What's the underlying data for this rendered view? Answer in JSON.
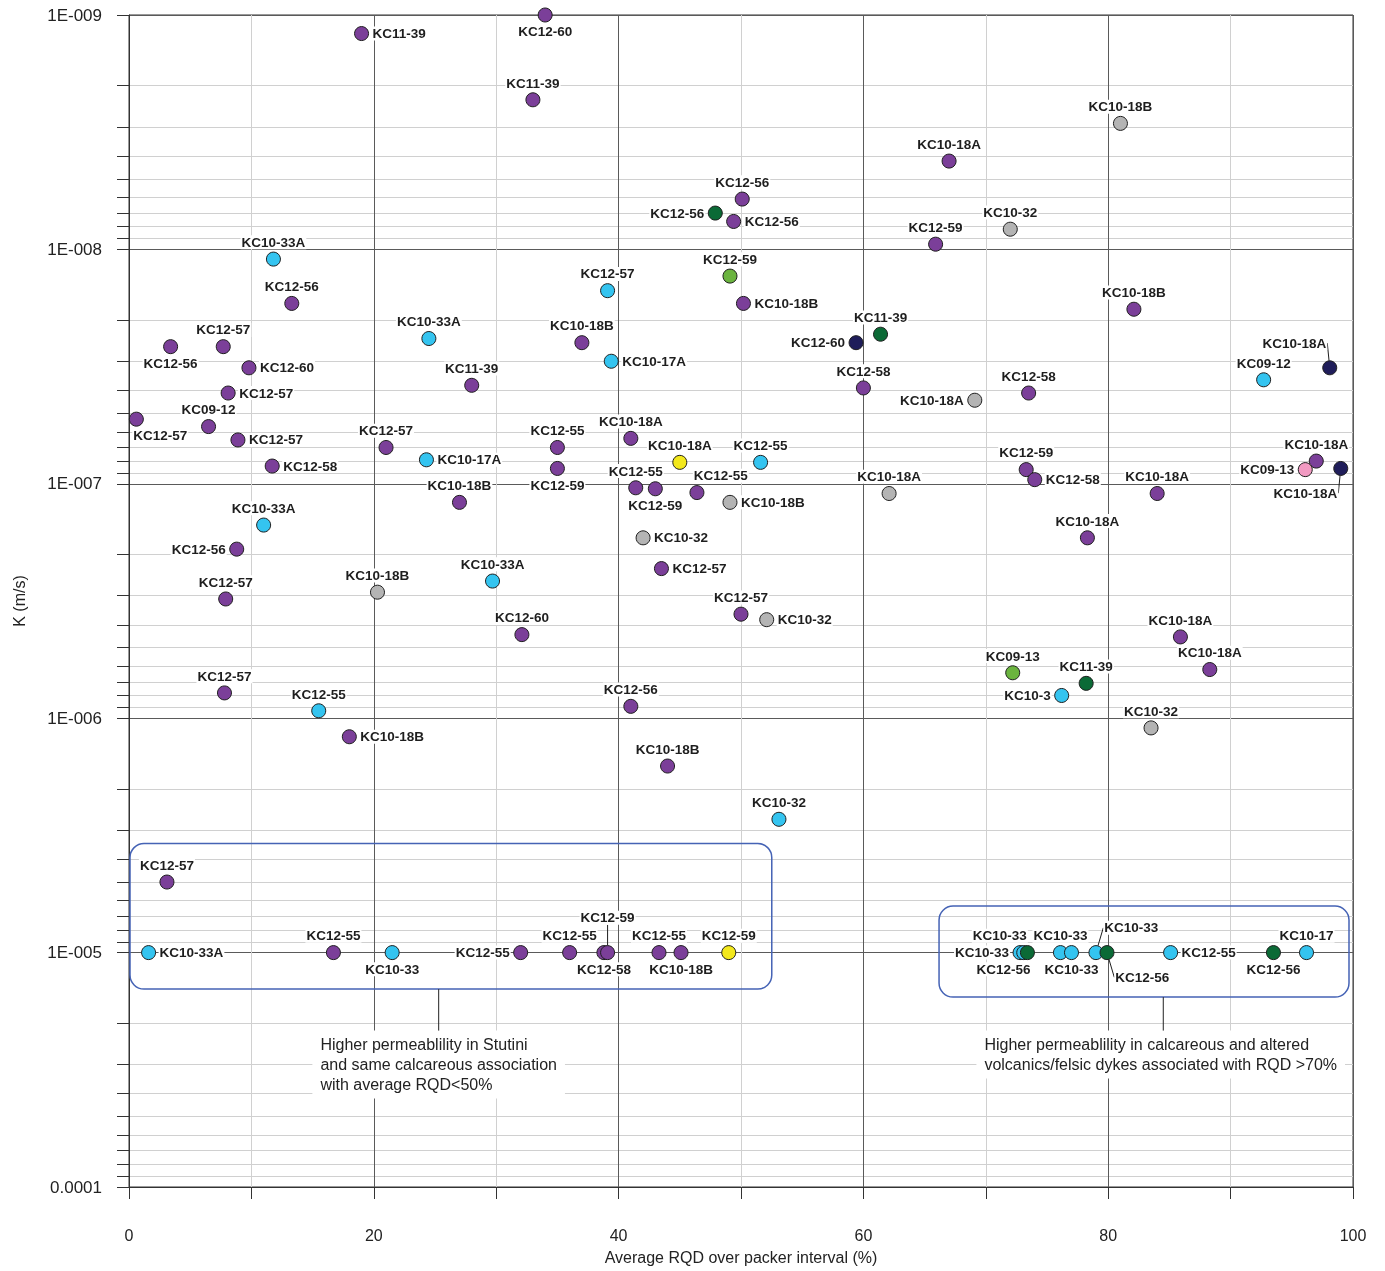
{
  "chart_data": {
    "type": "scatter",
    "xlabel": "Average RQD over packer interval (%)",
    "ylabel": "K (m/s)",
    "xlim": [
      0,
      100
    ],
    "xticks": [
      0,
      {
        "value": 10,
        "label": null
      },
      20,
      {
        "value": 30,
        "label": null
      },
      40,
      {
        "value": 50,
        "label": null
      },
      60,
      {
        "value": 70,
        "label": null
      },
      80,
      {
        "value": 90,
        "label": null
      },
      100
    ],
    "ylim": [
      0.0001,
      1e-09
    ],
    "yticks": [
      {
        "value": 1e-09,
        "label": "1E-009"
      },
      {
        "value": 2e-09,
        "label": null
      },
      {
        "value": 3e-09,
        "label": null
      },
      {
        "value": 4e-09,
        "label": null
      },
      {
        "value": 5e-09,
        "label": null
      },
      {
        "value": 6e-09,
        "label": null
      },
      {
        "value": 7e-09,
        "label": null
      },
      {
        "value": 8e-09,
        "label": null
      },
      {
        "value": 9e-09,
        "label": null
      },
      {
        "value": 1e-08,
        "label": "1E-008"
      },
      {
        "value": 2e-08,
        "label": null
      },
      {
        "value": 3e-08,
        "label": null
      },
      {
        "value": 4e-08,
        "label": null
      },
      {
        "value": 5e-08,
        "label": null
      },
      {
        "value": 6e-08,
        "label": null
      },
      {
        "value": 7e-08,
        "label": null
      },
      {
        "value": 8e-08,
        "label": null
      },
      {
        "value": 9e-08,
        "label": null
      },
      {
        "value": 1e-07,
        "label": "1E-007"
      },
      {
        "value": 2e-07,
        "label": null
      },
      {
        "value": 3e-07,
        "label": null
      },
      {
        "value": 4e-07,
        "label": null
      },
      {
        "value": 5e-07,
        "label": null
      },
      {
        "value": 6e-07,
        "label": null
      },
      {
        "value": 7e-07,
        "label": null
      },
      {
        "value": 8e-07,
        "label": null
      },
      {
        "value": 9e-07,
        "label": null
      },
      {
        "value": 1e-06,
        "label": "1E-006"
      },
      {
        "value": 2e-06,
        "label": null
      },
      {
        "value": 3e-06,
        "label": null
      },
      {
        "value": 4e-06,
        "label": null
      },
      {
        "value": 5e-06,
        "label": null
      },
      {
        "value": 6e-06,
        "label": null
      },
      {
        "value": 7e-06,
        "label": null
      },
      {
        "value": 8e-06,
        "label": null
      },
      {
        "value": 9e-06,
        "label": null
      },
      {
        "value": 1e-05,
        "label": "1E-005"
      },
      {
        "value": 2e-05,
        "label": null
      },
      {
        "value": 3e-05,
        "label": null
      },
      {
        "value": 4e-05,
        "label": null
      },
      {
        "value": 5e-05,
        "label": null
      },
      {
        "value": 6e-05,
        "label": null
      },
      {
        "value": 7e-05,
        "label": null
      },
      {
        "value": 8e-05,
        "label": null
      },
      {
        "value": 9e-05,
        "label": null
      },
      0.0001
    ],
    "log": "y",
    "grid": true,
    "marker": "circle",
    "series": [
      {
        "color": "#7b3f99",
        "x": [
          34,
          19,
          33,
          67,
          50.1,
          49.4,
          65.9,
          13.3,
          50.2,
          82.1,
          3.4,
          7.7,
          37,
          9.8,
          28,
          60,
          8.1,
          73.5,
          0.6,
          6.5,
          8.9,
          11.7,
          21,
          35,
          35,
          41,
          73.3,
          74,
          97,
          41.4,
          43,
          46.4,
          27,
          84,
          8.8,
          78.3,
          43.5,
          7.9,
          50,
          32.1,
          85.9,
          88.3,
          7.8,
          41,
          18,
          44,
          3.1,
          16.7,
          32,
          36,
          38.8,
          39.1,
          43.3,
          45.1
        ],
        "values": [
          1e-09,
          1.2e-09,
          2.3e-09,
          4.2e-09,
          6.1e-09,
          7.6e-09,
          9.5e-09,
          1.7e-08,
          1.7e-08,
          1.8e-08,
          2.6e-08,
          2.6e-08,
          2.5e-08,
          3.2e-08,
          3.8e-08,
          3.9e-08,
          4.1e-08,
          4.1e-08,
          5.3e-08,
          5.7e-08,
          6.5e-08,
          8.4e-08,
          7e-08,
          7e-08,
          8.6e-08,
          6.4e-08,
          8.7e-08,
          9.6e-08,
          8e-08,
          1.04e-07,
          1.05e-07,
          1.09e-07,
          1.2e-07,
          1.1e-07,
          1.9e-07,
          1.7e-07,
          2.3e-07,
          3.1e-07,
          3.6e-07,
          4.4e-07,
          4.5e-07,
          6.2e-07,
          7.8e-07,
          8.9e-07,
          1.2e-06,
          1.6e-06,
          5e-06,
          1e-05,
          1e-05,
          1e-05,
          1e-05,
          1e-05,
          1e-05,
          1e-05
        ],
        "value_labels": [
          "KC12-60",
          "KC11-39",
          "KC11-39",
          "KC10-18A",
          "KC12-56",
          "KC12-56",
          "KC12-59",
          "KC12-56",
          "KC10-18B",
          "KC10-18B",
          "KC12-56",
          "KC12-57",
          "KC10-18B",
          "KC12-60",
          "KC11-39",
          "KC12-58",
          "KC12-57",
          "KC12-58",
          "KC12-57",
          "KC09-12",
          "KC12-57",
          "KC12-58",
          "KC12-57",
          "KC12-55",
          "KC12-59",
          "KC10-18A",
          "KC12-59",
          "KC12-58",
          "KC10-18A",
          "KC12-55",
          "KC12-59",
          "KC12-55",
          "KC10-18B",
          "KC10-18A",
          "KC12-56",
          "KC10-18A",
          "KC12-57",
          "KC12-57",
          "KC12-57",
          "KC12-60",
          "KC10-18A",
          "KC10-18A",
          "KC12-57",
          "KC12-56",
          "KC10-18B",
          "KC10-18B",
          "KC12-57",
          "KC12-55",
          "KC12-55",
          "KC12-55",
          "KC12-58",
          "KC12-59",
          "KC12-55",
          "KC10-18B"
        ]
      },
      {
        "color": "#b4b4b4",
        "x": [
          81,
          72,
          69.1,
          49.1,
          62.1,
          42,
          20.3,
          52.1,
          83.5
        ],
        "values": [
          2.9e-09,
          8.2e-09,
          4.4e-08,
          1.2e-07,
          1.1e-07,
          1.7e-07,
          2.9e-07,
          3.8e-07,
          1.1e-06
        ],
        "value_labels": [
          "KC10-18B",
          "KC10-32",
          "KC10-18A",
          "KC10-18B",
          "KC10-18A",
          "KC10-32",
          "KC10-18B",
          "KC10-32",
          "KC10-32"
        ]
      },
      {
        "color": "#34c4f0",
        "x": [
          11.8,
          39.1,
          24.5,
          39.4,
          92.7,
          24.3,
          51.6,
          11,
          29.7,
          76.2,
          15.5,
          53.1,
          1.6,
          21.5,
          72.8,
          73.1,
          76.1,
          77,
          79,
          85.1,
          96.2
        ],
        "values": [
          1.1e-08,
          1.5e-08,
          2.4e-08,
          3e-08,
          3.6e-08,
          7.9e-08,
          8.1e-08,
          1.5e-07,
          2.6e-07,
          8e-07,
          9.3e-07,
          2.7e-06,
          1e-05,
          1e-05,
          1e-05,
          1e-05,
          1e-05,
          1e-05,
          1e-05,
          1e-05,
          1e-05
        ],
        "value_labels": [
          "KC10-33A",
          "KC12-57",
          "KC10-33A",
          "KC10-17A",
          "KC09-12",
          "KC10-17A",
          "KC12-55",
          "KC10-33A",
          "KC10-33A",
          "KC10-3",
          "KC12-55",
          "KC10-32",
          "KC10-33A",
          "KC10-33",
          "KC10-33",
          "KC10-33",
          "KC10-33",
          "KC10-33",
          "KC10-33",
          "KC12-55",
          "KC10-17"
        ]
      },
      {
        "color": "#f3e81c",
        "x": [
          45,
          49
        ],
        "values": [
          8.1e-08,
          1e-05
        ],
        "value_labels": [
          "KC10-18A",
          "KC12-59"
        ]
      },
      {
        "color": "#f29ac2",
        "x": [
          96.1
        ],
        "values": [
          8.7e-08
        ],
        "value_labels": [
          "KC09-13"
        ]
      },
      {
        "color": "#6bb43f",
        "x": [
          49.1,
          72.2
        ],
        "values": [
          1.3e-08,
          6.4e-07
        ],
        "value_labels": [
          "KC12-59",
          "KC09-13"
        ]
      },
      {
        "color": "#1f1d5a",
        "x": [
          59.4,
          98.1,
          99
        ],
        "values": [
          2.5e-08,
          3.2e-08,
          8.6e-08
        ],
        "value_labels": [
          "KC12-60",
          "KC10-18A",
          "KC10-18A"
        ]
      },
      {
        "color": "#0b6a36",
        "x": [
          47.9,
          61.4,
          78.2,
          73.4,
          79.9,
          93.5
        ],
        "values": [
          7e-09,
          2.3e-08,
          7.1e-07,
          1e-05,
          1e-05,
          1e-05
        ],
        "value_labels": [
          "KC12-56",
          "KC11-39",
          "KC11-39",
          "KC12-56",
          "KC12-56",
          "KC12-56"
        ]
      }
    ],
    "annotations": [
      "Higher permeablility in Stutini\nand same calcareous association\nwith average RQD<50%",
      "Higher permeablility in calcareous and altered\nvolcanics/felsic dykes associated with RQD >70%"
    ]
  }
}
